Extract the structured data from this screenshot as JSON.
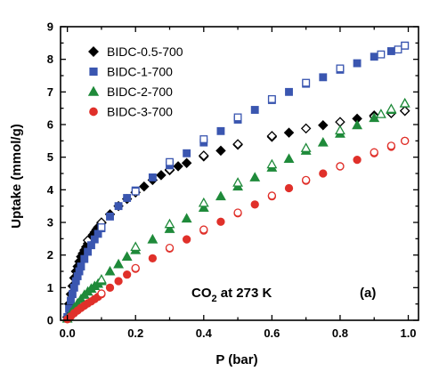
{
  "chart_data": {
    "type": "scatter",
    "xlabel": "P (bar)",
    "ylabel": "Uptake (mmol/g)",
    "xlim": [
      -0.02,
      1.03
    ],
    "ylim": [
      0,
      9
    ],
    "xticks": [
      "0.0",
      "0.2",
      "0.4",
      "0.6",
      "0.8",
      "1.0"
    ],
    "xtick_values": [
      0.0,
      0.2,
      0.4,
      0.6,
      0.8,
      1.0
    ],
    "yticks": [
      "0",
      "1",
      "2",
      "3",
      "4",
      "5",
      "6",
      "7",
      "8",
      "9"
    ],
    "ytick_values": [
      0,
      1,
      2,
      3,
      4,
      5,
      6,
      7,
      8,
      9
    ],
    "grid": false,
    "legend_position": "top-left",
    "annotation": {
      "main": "CO",
      "sub": "2",
      "rest": " at 273 K"
    },
    "panel_label": "(a)",
    "series": [
      {
        "name": "BIDC-0.5-700",
        "marker": "diamond",
        "color": "#000000",
        "adsorption": [
          [
            0.0,
            0.1
          ],
          [
            0.005,
            0.5
          ],
          [
            0.01,
            0.8
          ],
          [
            0.015,
            1.05
          ],
          [
            0.02,
            1.3
          ],
          [
            0.025,
            1.5
          ],
          [
            0.03,
            1.65
          ],
          [
            0.035,
            1.8
          ],
          [
            0.04,
            1.95
          ],
          [
            0.045,
            2.05
          ],
          [
            0.05,
            2.15
          ],
          [
            0.055,
            2.25
          ],
          [
            0.06,
            2.35
          ],
          [
            0.065,
            2.45
          ],
          [
            0.07,
            2.55
          ],
          [
            0.075,
            2.62
          ],
          [
            0.08,
            2.7
          ],
          [
            0.085,
            2.78
          ],
          [
            0.09,
            2.85
          ],
          [
            0.1,
            2.98
          ],
          [
            0.125,
            3.25
          ],
          [
            0.15,
            3.5
          ],
          [
            0.175,
            3.72
          ],
          [
            0.2,
            3.92
          ],
          [
            0.225,
            4.1
          ],
          [
            0.25,
            4.3
          ],
          [
            0.275,
            4.45
          ],
          [
            0.3,
            4.6
          ],
          [
            0.325,
            4.72
          ],
          [
            0.35,
            4.82
          ],
          [
            0.4,
            5.02
          ],
          [
            0.45,
            5.2
          ],
          [
            0.5,
            5.38
          ],
          [
            0.6,
            5.62
          ],
          [
            0.65,
            5.75
          ],
          [
            0.75,
            5.98
          ],
          [
            0.85,
            6.18
          ],
          [
            0.9,
            6.28
          ],
          [
            0.95,
            6.35
          ],
          [
            0.99,
            6.42
          ]
        ],
        "desorption": [
          [
            0.99,
            6.42
          ],
          [
            0.95,
            6.35
          ],
          [
            0.9,
            6.25
          ],
          [
            0.8,
            6.08
          ],
          [
            0.7,
            5.88
          ],
          [
            0.6,
            5.65
          ],
          [
            0.5,
            5.4
          ],
          [
            0.4,
            5.05
          ],
          [
            0.3,
            4.62
          ],
          [
            0.2,
            3.92
          ],
          [
            0.1,
            3.0
          ],
          [
            0.06,
            2.45
          ]
        ]
      },
      {
        "name": "BIDC-1-700",
        "marker": "square",
        "color": "#3a56b0",
        "adsorption": [
          [
            0.0,
            0.1
          ],
          [
            0.005,
            0.35
          ],
          [
            0.01,
            0.6
          ],
          [
            0.015,
            0.8
          ],
          [
            0.02,
            1.0
          ],
          [
            0.025,
            1.2
          ],
          [
            0.03,
            1.35
          ],
          [
            0.035,
            1.5
          ],
          [
            0.04,
            1.65
          ],
          [
            0.05,
            1.88
          ],
          [
            0.06,
            2.1
          ],
          [
            0.07,
            2.3
          ],
          [
            0.08,
            2.48
          ],
          [
            0.09,
            2.65
          ],
          [
            0.1,
            2.82
          ],
          [
            0.125,
            3.18
          ],
          [
            0.15,
            3.5
          ],
          [
            0.175,
            3.75
          ],
          [
            0.2,
            3.98
          ],
          [
            0.25,
            4.38
          ],
          [
            0.3,
            4.75
          ],
          [
            0.35,
            5.12
          ],
          [
            0.4,
            5.45
          ],
          [
            0.45,
            5.8
          ],
          [
            0.5,
            6.15
          ],
          [
            0.55,
            6.45
          ],
          [
            0.6,
            6.75
          ],
          [
            0.65,
            7.0
          ],
          [
            0.7,
            7.25
          ],
          [
            0.75,
            7.45
          ],
          [
            0.8,
            7.68
          ],
          [
            0.85,
            7.88
          ],
          [
            0.9,
            8.08
          ],
          [
            0.95,
            8.25
          ],
          [
            0.99,
            8.42
          ]
        ],
        "desorption": [
          [
            0.99,
            8.42
          ],
          [
            0.97,
            8.3
          ],
          [
            0.92,
            8.15
          ],
          [
            0.8,
            7.72
          ],
          [
            0.7,
            7.28
          ],
          [
            0.6,
            6.78
          ],
          [
            0.5,
            6.22
          ],
          [
            0.4,
            5.55
          ],
          [
            0.3,
            4.85
          ],
          [
            0.2,
            3.95
          ],
          [
            0.1,
            2.85
          ]
        ]
      },
      {
        "name": "BIDC-2-700",
        "marker": "triangle",
        "color": "#1f8a3a",
        "adsorption": [
          [
            0.0,
            0.05
          ],
          [
            0.01,
            0.22
          ],
          [
            0.02,
            0.38
          ],
          [
            0.03,
            0.52
          ],
          [
            0.04,
            0.65
          ],
          [
            0.05,
            0.78
          ],
          [
            0.06,
            0.88
          ],
          [
            0.07,
            0.97
          ],
          [
            0.08,
            1.05
          ],
          [
            0.09,
            1.12
          ],
          [
            0.1,
            1.2
          ],
          [
            0.125,
            1.5
          ],
          [
            0.15,
            1.72
          ],
          [
            0.175,
            1.95
          ],
          [
            0.2,
            2.15
          ],
          [
            0.25,
            2.48
          ],
          [
            0.3,
            2.8
          ],
          [
            0.35,
            3.12
          ],
          [
            0.4,
            3.45
          ],
          [
            0.45,
            3.8
          ],
          [
            0.5,
            4.1
          ],
          [
            0.55,
            4.38
          ],
          [
            0.6,
            4.68
          ],
          [
            0.65,
            4.95
          ],
          [
            0.7,
            5.2
          ],
          [
            0.75,
            5.45
          ],
          [
            0.8,
            5.72
          ],
          [
            0.85,
            5.98
          ],
          [
            0.9,
            6.2
          ],
          [
            0.95,
            6.45
          ],
          [
            0.99,
            6.65
          ]
        ],
        "desorption": [
          [
            0.99,
            6.65
          ],
          [
            0.95,
            6.48
          ],
          [
            0.92,
            6.32
          ],
          [
            0.8,
            5.82
          ],
          [
            0.7,
            5.28
          ],
          [
            0.6,
            4.78
          ],
          [
            0.5,
            4.22
          ],
          [
            0.4,
            3.6
          ],
          [
            0.3,
            2.95
          ],
          [
            0.2,
            2.25
          ],
          [
            0.1,
            1.25
          ]
        ]
      },
      {
        "name": "BIDC-3-700",
        "marker": "circle",
        "color": "#e0302a",
        "adsorption": [
          [
            0.0,
            0.03
          ],
          [
            0.01,
            0.12
          ],
          [
            0.02,
            0.22
          ],
          [
            0.03,
            0.3
          ],
          [
            0.04,
            0.38
          ],
          [
            0.05,
            0.45
          ],
          [
            0.06,
            0.52
          ],
          [
            0.07,
            0.58
          ],
          [
            0.08,
            0.65
          ],
          [
            0.09,
            0.72
          ],
          [
            0.1,
            0.8
          ],
          [
            0.125,
            1.0
          ],
          [
            0.15,
            1.2
          ],
          [
            0.175,
            1.4
          ],
          [
            0.2,
            1.58
          ],
          [
            0.25,
            1.9
          ],
          [
            0.3,
            2.2
          ],
          [
            0.35,
            2.48
          ],
          [
            0.4,
            2.75
          ],
          [
            0.45,
            3.02
          ],
          [
            0.5,
            3.28
          ],
          [
            0.55,
            3.55
          ],
          [
            0.6,
            3.8
          ],
          [
            0.65,
            4.05
          ],
          [
            0.7,
            4.28
          ],
          [
            0.75,
            4.5
          ],
          [
            0.8,
            4.72
          ],
          [
            0.85,
            4.92
          ],
          [
            0.9,
            5.12
          ],
          [
            0.95,
            5.32
          ],
          [
            0.99,
            5.5
          ]
        ],
        "desorption": [
          [
            0.99,
            5.5
          ],
          [
            0.95,
            5.35
          ],
          [
            0.9,
            5.15
          ],
          [
            0.8,
            4.72
          ],
          [
            0.7,
            4.3
          ],
          [
            0.6,
            3.82
          ],
          [
            0.5,
            3.3
          ],
          [
            0.4,
            2.78
          ],
          [
            0.3,
            2.22
          ],
          [
            0.2,
            1.6
          ],
          [
            0.1,
            0.82
          ]
        ]
      }
    ]
  }
}
